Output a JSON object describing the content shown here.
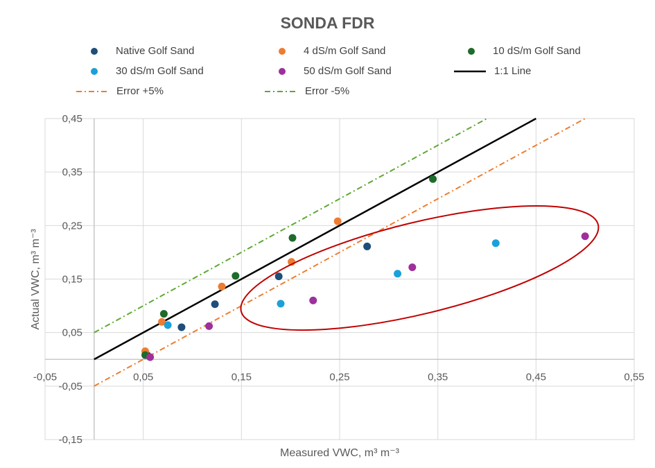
{
  "chart_data": {
    "type": "scatter",
    "title": "SONDA FDR",
    "xlabel": "Measured VWC, m³ m⁻³",
    "ylabel": "Actual VWC, m³ m⁻³",
    "xlim": [
      -0.05,
      0.55
    ],
    "ylim": [
      -0.15,
      0.45
    ],
    "x_ticks": [
      "-0,05",
      "0,05",
      "0,15",
      "0,25",
      "0,35",
      "0,45",
      "0,55"
    ],
    "y_ticks": [
      "0,45",
      "0,35",
      "0,25",
      "0,15",
      "0,05",
      "-0,05",
      "-0,15"
    ],
    "grid": true,
    "legend_position": "top",
    "series": [
      {
        "name": "Native Golf Sand",
        "color": "#1f4e79",
        "marker": "circle",
        "points": [
          [
            0.089,
            0.06
          ],
          [
            0.123,
            0.103
          ],
          [
            0.188,
            0.155
          ],
          [
            0.278,
            0.211
          ],
          [
            0.054,
            0.008
          ]
        ]
      },
      {
        "name": "4 dS/m Golf Sand",
        "color": "#ed7d31",
        "marker": "circle",
        "points": [
          [
            0.052,
            0.015
          ],
          [
            0.069,
            0.07
          ],
          [
            0.13,
            0.136
          ],
          [
            0.201,
            0.182
          ],
          [
            0.248,
            0.258
          ]
        ]
      },
      {
        "name": "10 dS/m Golf Sand",
        "color": "#1e6b2c",
        "marker": "circle",
        "points": [
          [
            0.052,
            0.008
          ],
          [
            0.071,
            0.085
          ],
          [
            0.144,
            0.156
          ],
          [
            0.202,
            0.227
          ],
          [
            0.345,
            0.337
          ]
        ]
      },
      {
        "name": "30 dS/m Golf Sand",
        "color": "#1ba1d9",
        "marker": "circle",
        "points": [
          [
            0.075,
            0.064
          ],
          [
            0.19,
            0.104
          ],
          [
            0.309,
            0.16
          ],
          [
            0.409,
            0.217
          ]
        ]
      },
      {
        "name": "50 dS/m Golf Sand",
        "color": "#9e2f9c",
        "marker": "circle",
        "points": [
          [
            0.057,
            0.004
          ],
          [
            0.117,
            0.062
          ],
          [
            0.223,
            0.11
          ],
          [
            0.324,
            0.172
          ],
          [
            0.5,
            0.23
          ]
        ]
      }
    ],
    "lines": [
      {
        "name": "1:1 Line",
        "color": "#000000",
        "style": "solid",
        "slope": 1,
        "intercept": 0,
        "x_range": [
          0,
          0.45
        ]
      },
      {
        "name": "Error +5%",
        "color": "#ed7d31",
        "style": "dash-dot",
        "slope": 1,
        "intercept": -0.05,
        "x_range": [
          0,
          0.5
        ]
      },
      {
        "name": "Error -5%",
        "color": "#5fa832",
        "style": "dash-dot",
        "slope": 1,
        "intercept": 0.05,
        "x_range": [
          0,
          0.4
        ]
      }
    ],
    "annotations": [
      {
        "type": "ellipse",
        "color": "#c00000",
        "encloses": [
          "30 dS/m Golf Sand",
          "50 dS/m Golf Sand"
        ]
      }
    ]
  }
}
